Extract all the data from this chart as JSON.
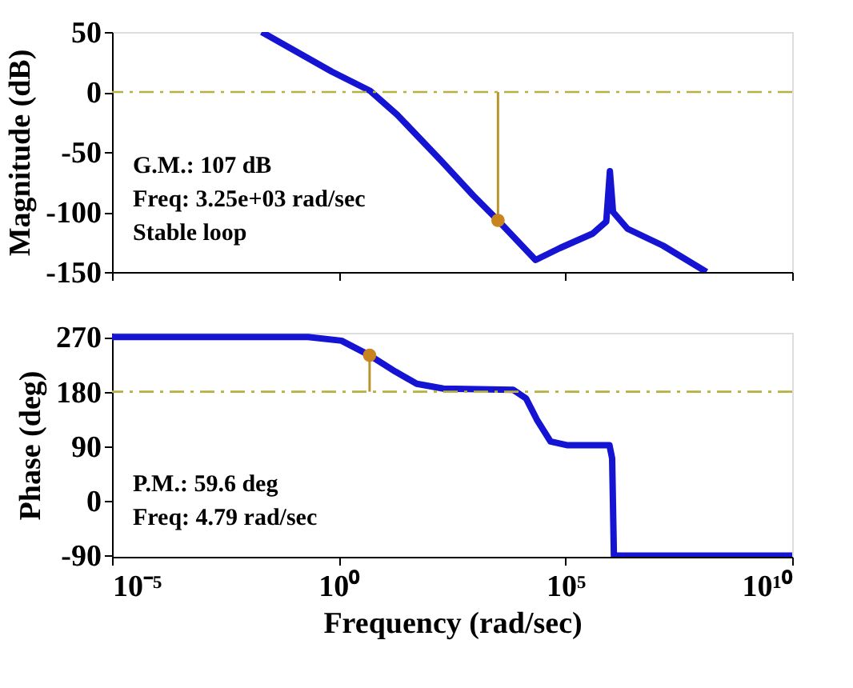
{
  "chart_data": [
    {
      "type": "line",
      "ylabel": "Magnitude (dB)",
      "log": "x",
      "xlim": [
        1e-05,
        10000000000
      ],
      "xticks": [
        {
          "value": 1e-05,
          "label": null
        },
        {
          "value": 1,
          "label": null
        },
        {
          "value": 100000,
          "label": null
        },
        {
          "value": 10000000000,
          "label": null
        }
      ],
      "ylim": [
        -150,
        50
      ],
      "yticks": [
        -150,
        -100,
        -50,
        0,
        50
      ],
      "tick_labels": "y",
      "grid": false,
      "series": [
        {
          "color": "#1414d2",
          "line_style": "solid",
          "x": [
            0.02,
            0.7,
            4.9,
            19.5,
            178,
            912,
            3250,
            21900,
            75900,
            398000,
            794000,
            955000,
            1120000,
            2340000,
            14100000,
            129000000
          ],
          "values": [
            50,
            17,
            1,
            -19,
            -57,
            -86,
            -107,
            -140,
            -130,
            -118,
            -108,
            -66,
            -100,
            -114,
            -128,
            -150
          ]
        },
        {
          "type": "line",
          "color": "#b8962e",
          "line_style": "solid",
          "x": [
            3250,
            3250
          ],
          "values": [
            0,
            -107
          ]
        },
        {
          "type": "scatter",
          "color": "#c8841e",
          "marker": "circle",
          "x": [
            3250
          ],
          "values": [
            -107
          ]
        }
      ],
      "ref_lines": [
        {
          "axis": "y",
          "value": 0,
          "color": "#b8b040",
          "line_style": "dashdot"
        }
      ],
      "annotations": [
        "G.M.: 107 dB",
        "Freq: 3.25e+03 rad/sec",
        "Stable loop"
      ]
    },
    {
      "type": "line",
      "xlabel": "Frequency (rad/sec)",
      "ylabel": "Phase (deg)",
      "log": "x",
      "xlim": [
        1e-05,
        10000000000
      ],
      "xticks": [
        {
          "value": 1e-05,
          "label": "10⁻⁵"
        },
        {
          "value": 1,
          "label": "10⁰"
        },
        {
          "value": 100000,
          "label": "10⁵"
        },
        {
          "value": 10000000000,
          "label": "10¹⁰"
        }
      ],
      "ylim": [
        -92,
        277
      ],
      "yticks": [
        -90,
        0,
        90,
        180,
        270
      ],
      "grid": false,
      "series": [
        {
          "color": "#1414d2",
          "line_style": "solid",
          "x": [
            1e-05,
            0.21,
            1.15,
            4.79,
            17.8,
            52.5,
            204,
            7080,
            13500,
            23400,
            46800,
            107000,
            933000,
            1070000,
            1170000,
            10000000000
          ],
          "values": [
            270,
            270,
            264,
            240,
            213,
            193,
            185,
            183,
            169,
            134,
            98,
            92,
            92,
            70,
            -90,
            -90
          ]
        },
        {
          "type": "line",
          "color": "#b8962e",
          "line_style": "solid",
          "x": [
            4.79,
            4.79
          ],
          "values": [
            180,
            240
          ]
        },
        {
          "type": "scatter",
          "color": "#c8841e",
          "marker": "circle",
          "x": [
            4.79
          ],
          "values": [
            240
          ]
        }
      ],
      "ref_lines": [
        {
          "axis": "y",
          "value": 180,
          "color": "#b8b040",
          "line_style": "dashdot"
        }
      ],
      "annotations": [
        "P.M.: 59.6 deg",
        "Freq: 4.79 rad/sec"
      ]
    }
  ]
}
